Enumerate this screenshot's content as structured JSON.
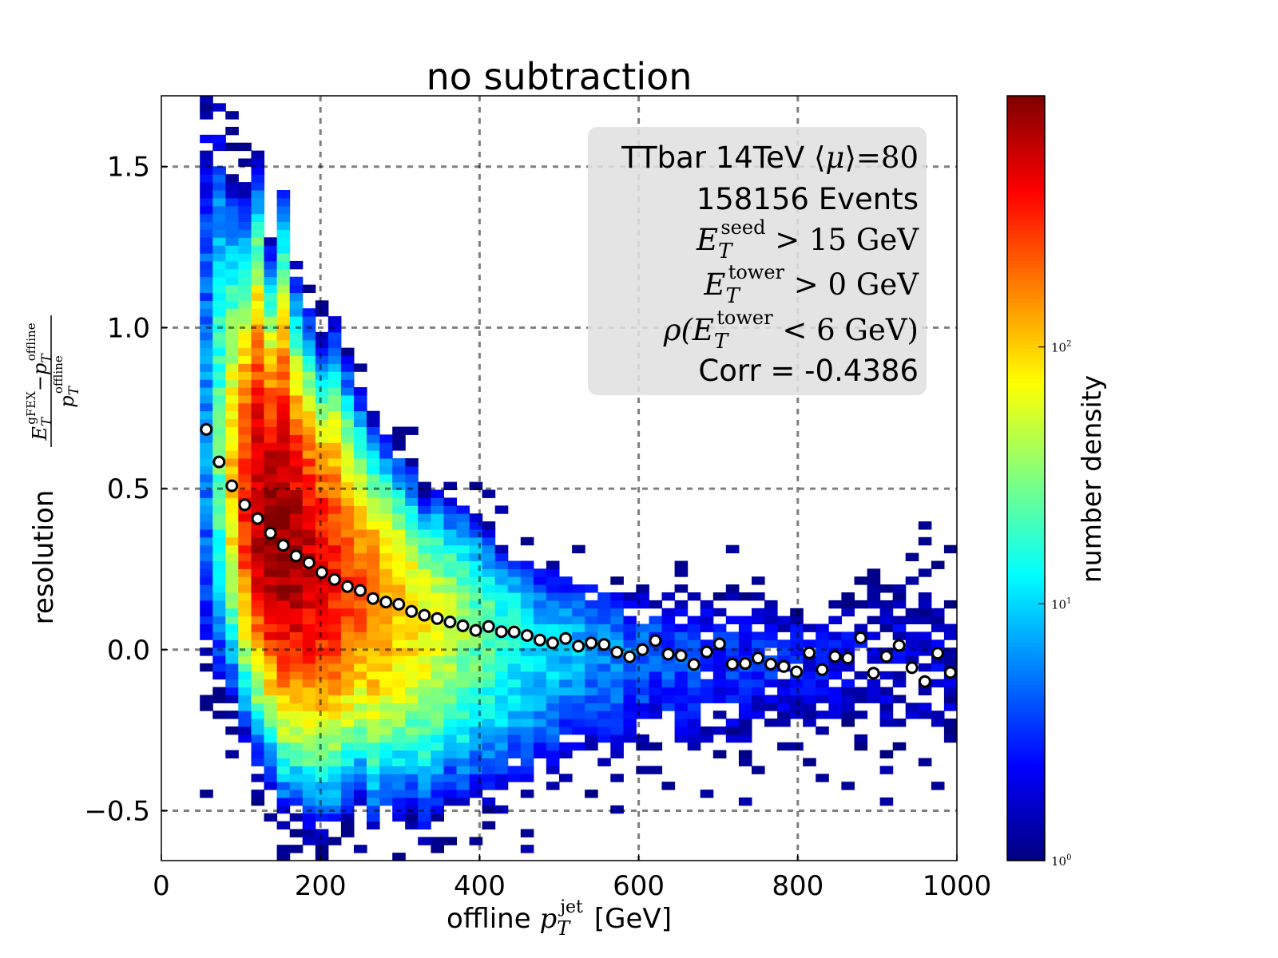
{
  "chart_data": {
    "type": "heatmap",
    "title": "no subtraction",
    "xlabel": {
      "prefix": "offline ",
      "var": "p",
      "sub": "T",
      "sup": "jet",
      "unit": "[GeV]"
    },
    "ylabel": {
      "text": "resolution",
      "numerator": {
        "var1": "E",
        "sub1": "T",
        "sup1": "gFEX",
        "minus": "−",
        "var2": "p",
        "sub2": "T",
        "sup2": "offline"
      },
      "denominator": {
        "var": "p",
        "sub": "T",
        "sup": "offline"
      }
    },
    "xlim": [
      0,
      1000
    ],
    "ylim": [
      -0.655,
      1.72
    ],
    "xticks": [
      "0",
      "200",
      "400",
      "600",
      "800",
      "1000"
    ],
    "xtick_values": [
      0,
      200,
      400,
      600,
      800,
      1000
    ],
    "yticks": [
      "−0.5",
      "0.0",
      "0.5",
      "1.0",
      "1.5"
    ],
    "ytick_values": [
      -0.5,
      0,
      0.5,
      1.0,
      1.5
    ],
    "grid": true,
    "colormap": "jet",
    "color_scale": "log",
    "color_range": [
      1,
      950
    ],
    "colorbar": {
      "label": "number density",
      "ticks": [
        {
          "base": "10",
          "exp": "0",
          "value": 1
        },
        {
          "base": "10",
          "exp": "1",
          "value": 10
        },
        {
          "base": "10",
          "exp": "2",
          "value": 100
        }
      ]
    },
    "profile": {
      "marker": "white circle",
      "x": [
        56.5,
        72.6,
        88.7,
        104.8,
        121.0,
        137.1,
        153.2,
        169.4,
        185.5,
        201.6,
        217.7,
        233.9,
        250.0,
        266.1,
        282.3,
        298.4,
        314.5,
        330.6,
        346.8,
        362.9,
        379.0,
        395.2,
        411.3,
        427.4,
        443.5,
        459.7,
        475.8,
        491.9,
        508.1,
        524.2,
        540.3,
        556.5,
        572.6,
        588.7,
        604.8,
        621.0,
        637.1,
        653.2,
        669.4,
        685.5,
        701.6,
        717.7,
        733.9,
        750.0,
        766.1,
        782.3,
        798.4,
        814.5,
        830.6,
        846.8,
        862.9,
        879.0,
        895.2,
        911.3,
        927.4,
        943.5,
        959.7,
        975.8,
        991.9
      ],
      "y": [
        0.684,
        0.583,
        0.509,
        0.45,
        0.407,
        0.362,
        0.324,
        0.291,
        0.27,
        0.24,
        0.218,
        0.196,
        0.184,
        0.159,
        0.148,
        0.141,
        0.119,
        0.107,
        0.097,
        0.086,
        0.074,
        0.06,
        0.072,
        0.056,
        0.055,
        0.044,
        0.03,
        0.021,
        0.035,
        0.011,
        0.021,
        0.016,
        -0.008,
        -0.022,
        0.0,
        0.028,
        -0.014,
        -0.018,
        -0.046,
        -0.007,
        0.018,
        -0.045,
        -0.043,
        -0.026,
        -0.045,
        -0.052,
        -0.069,
        -0.01,
        -0.062,
        -0.021,
        -0.026,
        0.037,
        -0.073,
        -0.021,
        0.013,
        -0.056,
        -0.099,
        -0.011,
        -0.071
      ]
    },
    "density_columns": {
      "peak_count": [
        6,
        25,
        100,
        316,
        631,
        891,
        794,
        708,
        562,
        447,
        355,
        282,
        224,
        178,
        141,
        112,
        89,
        71,
        56,
        45,
        35,
        28,
        22,
        19,
        16,
        13,
        11,
        10,
        9,
        8,
        7,
        6,
        6,
        5,
        5,
        4,
        4,
        4,
        4,
        3,
        3,
        3,
        3,
        3,
        3,
        2.6,
        2.5,
        2.4,
        2.3,
        2.2,
        2.1,
        2,
        2,
        1.9,
        1.9,
        1.8,
        1.8,
        1.8,
        1.7
      ],
      "upper_edge": [
        1.72,
        1.72,
        1.5,
        1.45,
        1.6,
        1.3,
        1.5,
        1.2,
        1.1,
        1.0,
        1.05,
        0.95,
        0.85,
        0.75,
        0.7,
        0.65,
        0.6,
        0.5,
        0.55,
        0.5,
        0.5,
        0.45,
        0.4,
        0.35,
        0.32,
        0.3,
        0.28,
        0.27,
        0.25,
        0.25,
        0.23,
        0.22,
        0.2,
        0.18,
        0.18,
        0.18,
        0.18,
        0.18,
        0.18,
        0.18,
        0.18,
        0.18,
        0.18,
        0.15,
        0.15,
        0.15,
        0.15,
        0.15,
        0.15,
        0.15,
        0.15,
        0.15,
        0.15,
        0.15,
        0.15,
        0.15,
        0.15,
        0.15,
        0.15
      ],
      "lower_edge": [
        -0.15,
        -0.15,
        -0.2,
        -0.3,
        -0.4,
        -0.45,
        -0.55,
        -0.55,
        -0.6,
        -0.6,
        -0.6,
        -0.55,
        -0.5,
        -0.6,
        -0.55,
        -0.55,
        -0.55,
        -0.6,
        -0.55,
        -0.5,
        -0.55,
        -0.5,
        -0.5,
        -0.5,
        -0.45,
        -0.45,
        -0.4,
        -0.4,
        -0.35,
        -0.35,
        -0.35,
        -0.35,
        -0.35,
        -0.3,
        -0.3,
        -0.3,
        -0.3,
        -0.3,
        -0.3,
        -0.3,
        -0.3,
        -0.3,
        -0.3,
        -0.25,
        -0.25,
        -0.25,
        -0.25,
        -0.25,
        -0.25,
        -0.25,
        -0.25,
        -0.25,
        -0.25,
        -0.25,
        -0.25,
        -0.25,
        -0.25,
        -0.25,
        -0.25
      ]
    },
    "annotation_box": {
      "line1_text": "TTbar 14TeV ",
      "line1_math": {
        "open": "⟨",
        "var": "μ",
        "close": "⟩",
        "eq": "=80"
      },
      "line2": "158156 Events",
      "line3": {
        "var": "E",
        "sub": "T",
        "sup": "seed",
        "rest": " > 15 GeV"
      },
      "line4": {
        "var": "E",
        "sub": "T",
        "sup": "tower",
        "rest": " > 0 GeV"
      },
      "line5": {
        "prefix": "ρ(",
        "var": "E",
        "sub": "T",
        "sup": "tower",
        "rest": " < 6 GeV)"
      },
      "line6": "Corr = -0.4386",
      "background": "#e0e0e0"
    }
  }
}
